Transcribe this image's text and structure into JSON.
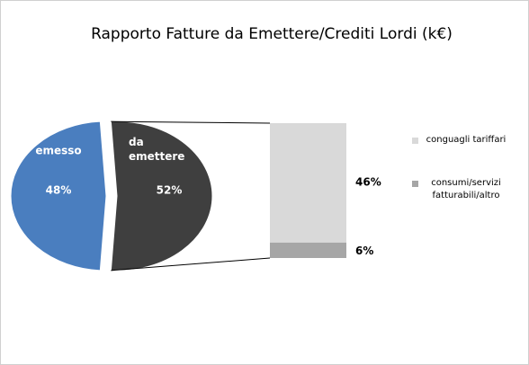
{
  "chart_data": {
    "type": "bar-of-pie",
    "title": "Rapporto Fatture da Emettere/Crediti Lordi (k€)",
    "categories": [
      "emesso",
      "da emettere"
    ],
    "values": [
      48,
      52
    ],
    "value_labels": [
      "48%",
      "52%"
    ],
    "colors": [
      "#4a7ebf",
      "#3f3f3f"
    ],
    "breakdown": {
      "categories": [
        "conguagli tariffari",
        "consumi/servizi fatturabili/altro"
      ],
      "values": [
        46,
        6
      ],
      "value_labels": [
        "46%",
        "6%"
      ],
      "colors": [
        "#d9d9d9",
        "#a6a6a6"
      ]
    }
  }
}
